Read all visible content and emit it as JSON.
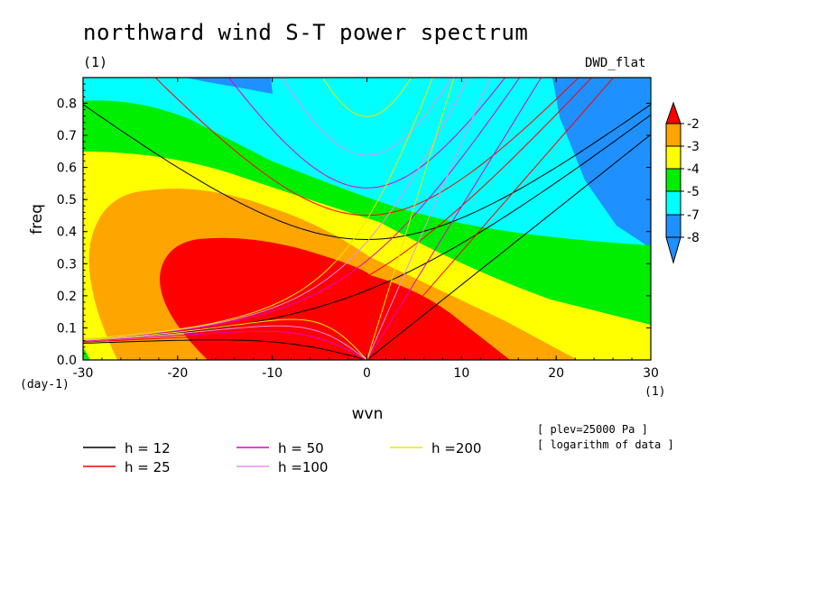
{
  "header": {
    "title": "northward wind S-T power spectrum",
    "subtitle": "(1)",
    "dataset": "DWD_flat"
  },
  "annotations": {
    "plev": "[ plev=25000 Pa ]",
    "log_note": "[ logarithm of data ]"
  },
  "chart_data": {
    "type": "heatmap",
    "title": "northward wind S-T power spectrum",
    "xlabel": "wvn",
    "ylabel": "freq",
    "x_unit": "(1)",
    "y_unit": "(day-1)",
    "xlim": [
      -30,
      30
    ],
    "ylim": [
      0,
      0.88
    ],
    "x_ticks": [
      "-30",
      "-20",
      "-10",
      "0",
      "10",
      "20",
      "30"
    ],
    "x_tick_values": [
      -30,
      -20,
      -10,
      0,
      10,
      20,
      30
    ],
    "y_ticks": [
      "0.0",
      "0.1",
      "0.2",
      "0.3",
      "0.4",
      "0.5",
      "0.6",
      "0.7",
      "0.8"
    ],
    "y_tick_values": [
      0,
      0.1,
      0.2,
      0.3,
      0.4,
      0.5,
      0.6,
      0.7,
      0.8
    ],
    "colorbar": {
      "labels": [
        "-2",
        "-3",
        "-4",
        "-5",
        "-7",
        "-8"
      ],
      "colors": [
        "#ff0000",
        "#ffa500",
        "#ffff00",
        "#00ee00",
        "#00ffff",
        "#1e90ff"
      ],
      "extend": "both"
    },
    "contour_levels": [
      -2,
      -3,
      -4,
      -5,
      -7,
      -8
    ],
    "dispersion_curves": [
      {
        "name": "h = 12",
        "h": 12,
        "color": "#000000"
      },
      {
        "name": "h = 25",
        "h": 25,
        "color": "#ff0000"
      },
      {
        "name": "h = 50",
        "h": 50,
        "color": "#e000c8"
      },
      {
        "name": "h =100",
        "h": 100,
        "color": "#e890e8"
      },
      {
        "name": "h =200",
        "h": 200,
        "color": "#e8e800"
      }
    ],
    "legend_placement": "bottom-left"
  }
}
